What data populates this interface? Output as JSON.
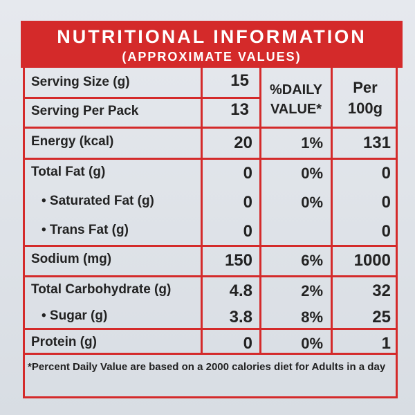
{
  "header": {
    "title": "NUTRITIONAL INFORMATION",
    "subtitle": "(APPROXIMATE VALUES)"
  },
  "table": {
    "serving_rows": [
      [
        "Serving Size (g)",
        "15"
      ],
      [
        "Serving Per Pack",
        "13"
      ]
    ],
    "column_headers": [
      "%DAILY VALUE*",
      "Per 100g"
    ],
    "rows": [
      [
        "Energy (kcal)",
        "20",
        "1%",
        "131"
      ],
      [
        "Total Fat (g)",
        "0",
        "0%",
        "0"
      ],
      [
        "• Saturated Fat (g)",
        "0",
        "0%",
        "0"
      ],
      [
        "• Trans Fat (g)",
        "0",
        "",
        "0"
      ],
      [
        "Sodium (mg)",
        "150",
        "6%",
        "1000"
      ],
      [
        "Total Carbohydrate (g)",
        "4.8",
        "2%",
        "32"
      ],
      [
        "• Sugar (g)",
        "3.8",
        "8%",
        "25"
      ],
      [
        "Protein (g)",
        "0",
        "0%",
        "1"
      ]
    ]
  },
  "footnote": "*Percent Daily Value are based on a 2000 calories diet for Adults in a day"
}
